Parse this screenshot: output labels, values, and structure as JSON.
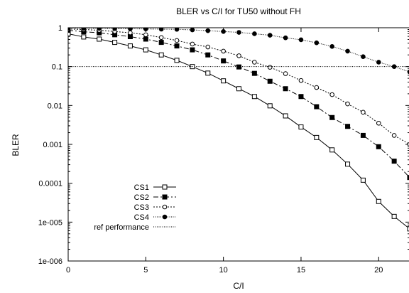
{
  "chart_data": {
    "type": "line",
    "title": "BLER vs C/I for TU50 without FH",
    "xlabel": "C/I",
    "ylabel": "BLER",
    "xlim": [
      0,
      22
    ],
    "ylim": [
      1e-06,
      1
    ],
    "y_scale": "log",
    "x_ticks": [
      0,
      5,
      10,
      15,
      20
    ],
    "x_tick_labels": [
      "0",
      "5",
      "10",
      "15",
      "20"
    ],
    "y_ticks": [
      1,
      0.1,
      0.01,
      0.001,
      0.0001,
      1e-05,
      1e-06
    ],
    "y_tick_labels": [
      "1",
      "0.1",
      "0.01",
      "0.001",
      "0.0001",
      "1e-005",
      "1e-006"
    ],
    "grid": false,
    "legend_position": "bottom-left",
    "series": [
      {
        "name": "CS1",
        "marker": "open-square",
        "line": "solid",
        "x": [
          0,
          1,
          2,
          3,
          4,
          5,
          6,
          7,
          8,
          9,
          10,
          11,
          12,
          13,
          14,
          15,
          16,
          17,
          18,
          19,
          20,
          21,
          22
        ],
        "y": [
          0.7,
          0.58,
          0.51,
          0.42,
          0.34,
          0.27,
          0.2,
          0.145,
          0.1,
          0.068,
          0.043,
          0.027,
          0.017,
          0.0098,
          0.0054,
          0.0028,
          0.0015,
          0.00072,
          0.00031,
          0.00012,
          3.4e-05,
          1.4e-05,
          6.7e-06
        ]
      },
      {
        "name": "CS2",
        "marker": "filled-square",
        "line": "dash-dot",
        "x": [
          0,
          1,
          2,
          3,
          4,
          5,
          6,
          7,
          8,
          9,
          10,
          11,
          12,
          13,
          14,
          15,
          16,
          17,
          18,
          19,
          20,
          21,
          22
        ],
        "y": [
          0.86,
          0.79,
          0.74,
          0.66,
          0.59,
          0.51,
          0.42,
          0.34,
          0.27,
          0.2,
          0.14,
          0.098,
          0.067,
          0.042,
          0.027,
          0.017,
          0.0093,
          0.0049,
          0.0029,
          0.0017,
          0.00087,
          0.00037,
          0.00014
        ]
      },
      {
        "name": "CS3",
        "marker": "open-circle",
        "line": "dotted",
        "x": [
          0,
          1,
          2,
          3,
          4,
          5,
          6,
          7,
          8,
          9,
          10,
          11,
          12,
          13,
          14,
          15,
          16,
          17,
          18,
          19,
          20,
          21,
          22
        ],
        "y": [
          0.93,
          0.9,
          0.86,
          0.8,
          0.74,
          0.66,
          0.56,
          0.47,
          0.38,
          0.32,
          0.25,
          0.19,
          0.13,
          0.096,
          0.066,
          0.044,
          0.029,
          0.019,
          0.011,
          0.0067,
          0.0035,
          0.0017,
          0.001
        ]
      },
      {
        "name": "CS4",
        "marker": "filled-circle",
        "line": "fine-dotted",
        "x": [
          0,
          1,
          2,
          3,
          4,
          5,
          6,
          7,
          8,
          9,
          10,
          11,
          12,
          13,
          14,
          15,
          16,
          17,
          18,
          19,
          20,
          21,
          22
        ],
        "y": [
          0.98,
          0.97,
          0.96,
          0.95,
          0.94,
          0.93,
          0.92,
          0.91,
          0.88,
          0.84,
          0.8,
          0.76,
          0.7,
          0.64,
          0.55,
          0.49,
          0.41,
          0.33,
          0.25,
          0.18,
          0.13,
          0.1,
          0.073
        ]
      },
      {
        "name": "ref performance",
        "marker": "none",
        "line": "fine-dotted",
        "x": [
          0,
          22
        ],
        "y": [
          0.1,
          0.1
        ]
      }
    ]
  }
}
